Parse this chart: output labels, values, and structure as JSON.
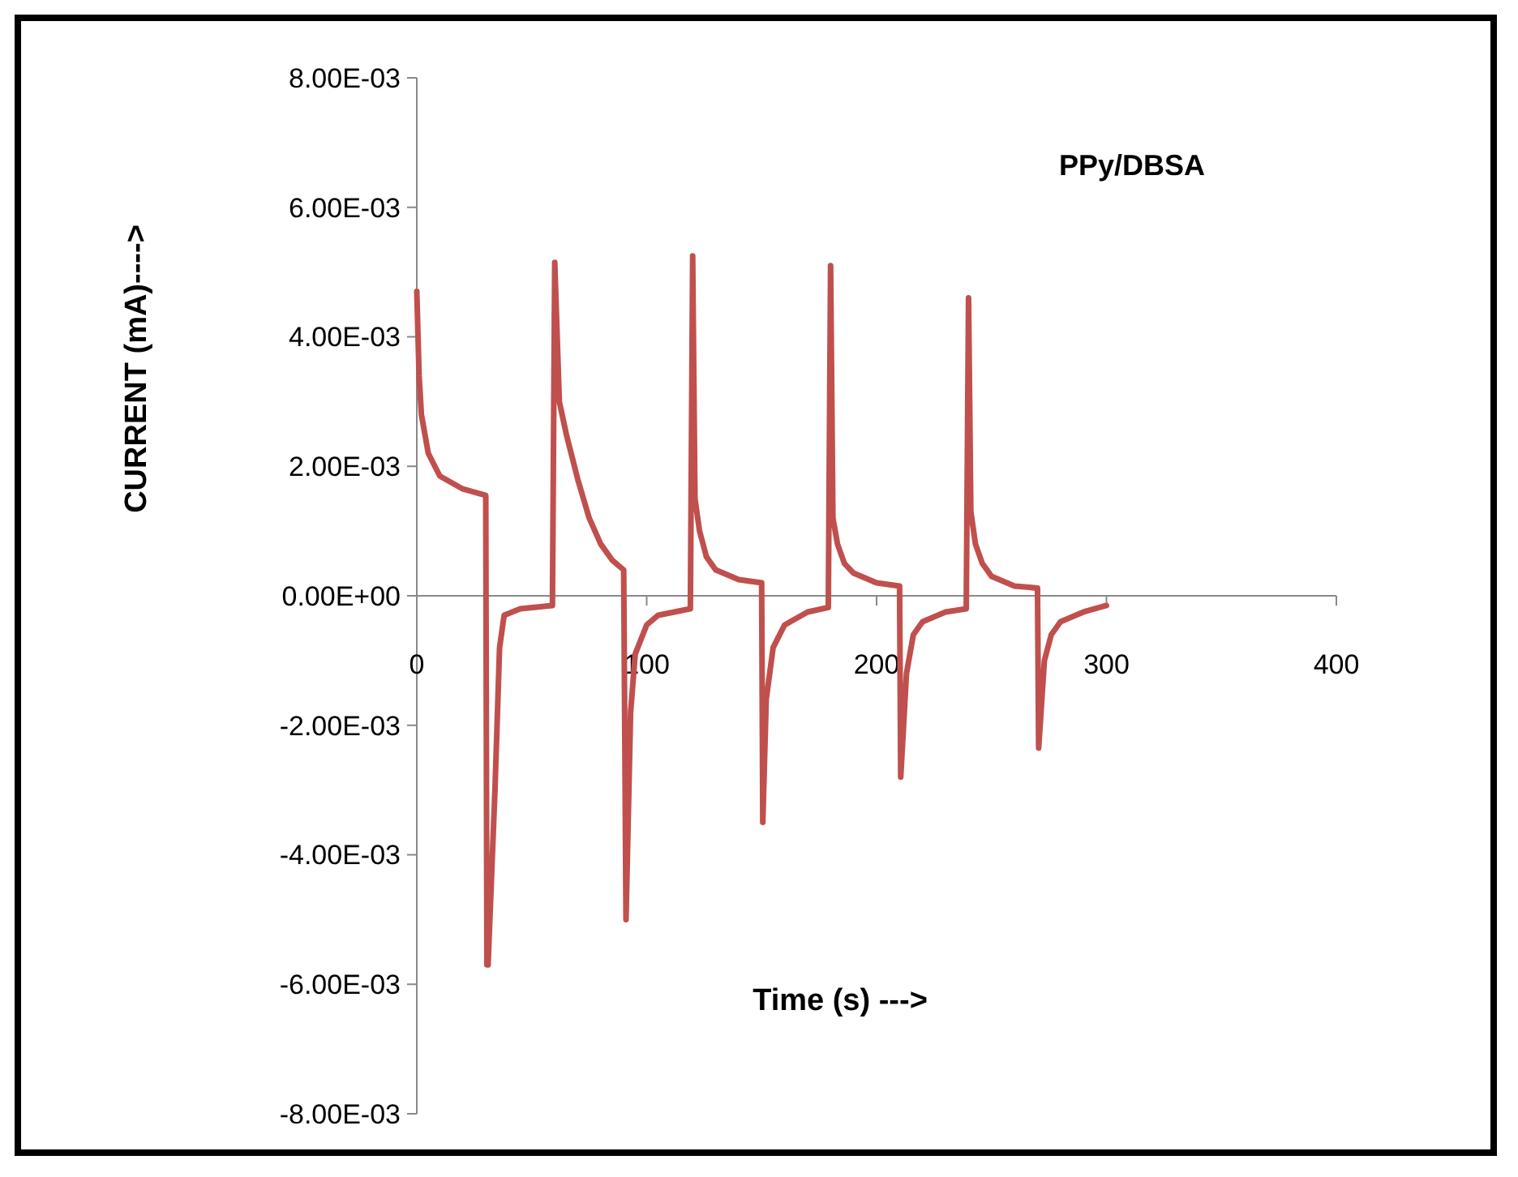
{
  "chart_data": {
    "type": "line",
    "title": "PPy/DBSA",
    "xlabel": "Time (s)  --->",
    "ylabel": "CURRENT (mA)---->",
    "grid": false,
    "marker": "none",
    "line_style": "solid",
    "xlim": [
      0,
      400
    ],
    "xticks": [
      0,
      100,
      200,
      300,
      400
    ],
    "ylim": [
      -0.008,
      0.008
    ],
    "yticks": [
      {
        "value": -0.008,
        "label": "-8.00E-03"
      },
      {
        "value": -0.006,
        "label": "-6.00E-03"
      },
      {
        "value": -0.004,
        "label": "-4.00E-03"
      },
      {
        "value": -0.002,
        "label": "-2.00E-03"
      },
      {
        "value": 0,
        "label": "0.00E+00"
      },
      {
        "value": 0.002,
        "label": "2.00E-03"
      },
      {
        "value": 0.004,
        "label": "4.00E-03"
      },
      {
        "value": 0.006,
        "label": "6.00E-03"
      },
      {
        "value": 0.008,
        "label": "8.00E-03"
      }
    ],
    "series": [
      {
        "color": "#c0504d",
        "x": [
          0,
          1,
          2,
          5,
          10,
          20,
          30,
          30.5,
          31,
          34,
          36,
          38,
          45,
          59,
          60,
          62,
          65,
          70,
          75,
          80,
          85,
          90,
          91,
          93,
          95,
          100,
          105,
          119,
          120,
          121,
          123,
          126,
          130,
          140,
          150,
          150.5,
          152,
          155,
          160,
          170,
          179,
          180,
          181,
          183,
          186,
          190,
          200,
          210,
          210.5,
          213,
          216,
          220,
          230,
          239,
          240,
          241,
          243,
          246,
          250,
          260,
          270,
          270.5,
          273,
          276,
          280,
          290,
          300
        ],
        "values": [
          0.0047,
          0.0034,
          0.0028,
          0.0022,
          0.00185,
          0.00165,
          0.00155,
          -0.0057,
          -0.0057,
          -0.003,
          -0.0008,
          -0.0003,
          -0.0002,
          -0.00015,
          0.00515,
          0.003,
          0.0025,
          0.0018,
          0.0012,
          0.0008,
          0.00055,
          0.0004,
          -0.005,
          -0.0018,
          -0.0009,
          -0.00045,
          -0.0003,
          -0.0002,
          0.00525,
          0.0015,
          0.001,
          0.0006,
          0.0004,
          0.00025,
          0.0002,
          -0.0035,
          -0.0016,
          -0.0008,
          -0.00045,
          -0.00025,
          -0.00018,
          0.0051,
          0.0012,
          0.0008,
          0.0005,
          0.00035,
          0.0002,
          0.00015,
          -0.0028,
          -0.0012,
          -0.0006,
          -0.0004,
          -0.00025,
          -0.0002,
          0.0046,
          0.0013,
          0.0008,
          0.0005,
          0.0003,
          0.00015,
          0.00012,
          -0.00235,
          -0.001,
          -0.0006,
          -0.0004,
          -0.00025,
          -0.00015
        ]
      }
    ]
  }
}
